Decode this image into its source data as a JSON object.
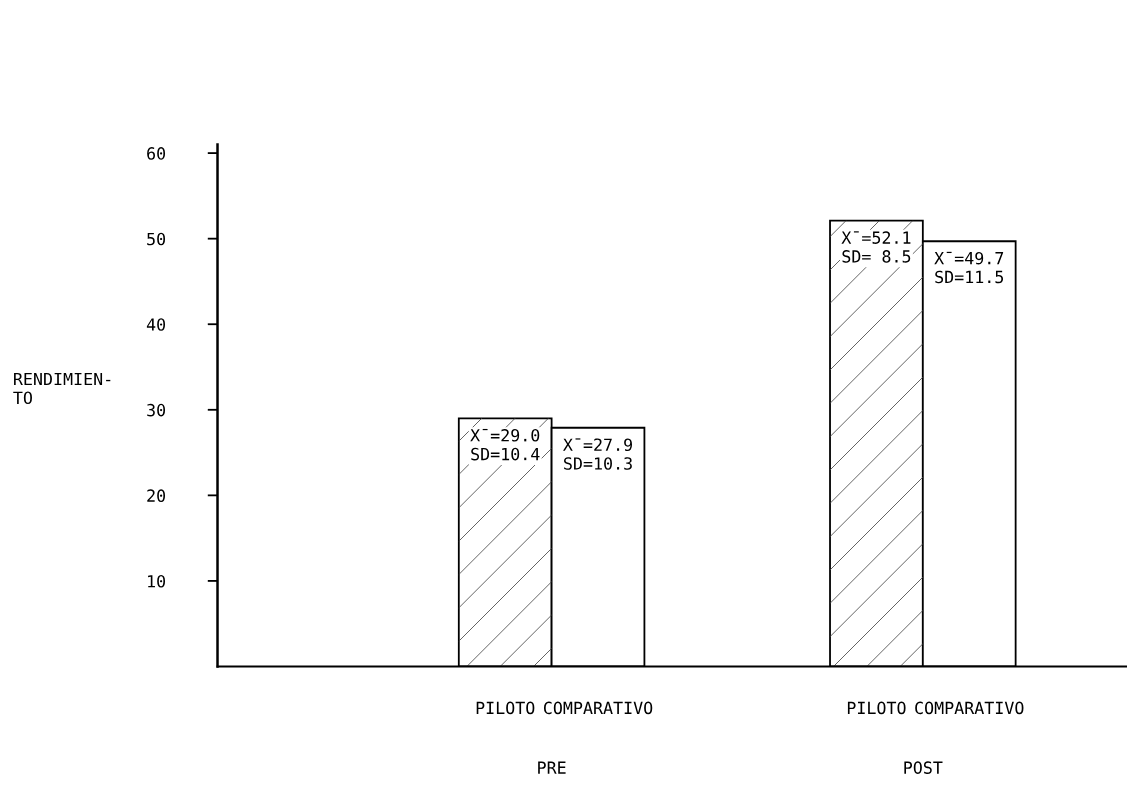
{
  "chart_data": {
    "type": "bar",
    "ylabel": "RENDIMIEN-\nTO",
    "categories": [
      "PRE",
      "POST"
    ],
    "series": [
      {
        "name": "PILOTO",
        "color": "#ffffff",
        "values": [
          29.0,
          52.1
        ],
        "value_labels": [
          "X̄=29.0\nSD=10.4",
          "X̄=52.1\nSD= 8.5"
        ]
      },
      {
        "name": "COMPARATIVO",
        "color": "#ffffff",
        "values": [
          27.9,
          49.7
        ],
        "value_labels": [
          "X̄=27.9\nSD=10.3",
          "X̄=49.7\nSD=11.5"
        ]
      }
    ],
    "ylim": [
      0,
      61
    ],
    "yticks": [
      10,
      20,
      30,
      40,
      50,
      60
    ],
    "grid": false,
    "legend": false
  }
}
